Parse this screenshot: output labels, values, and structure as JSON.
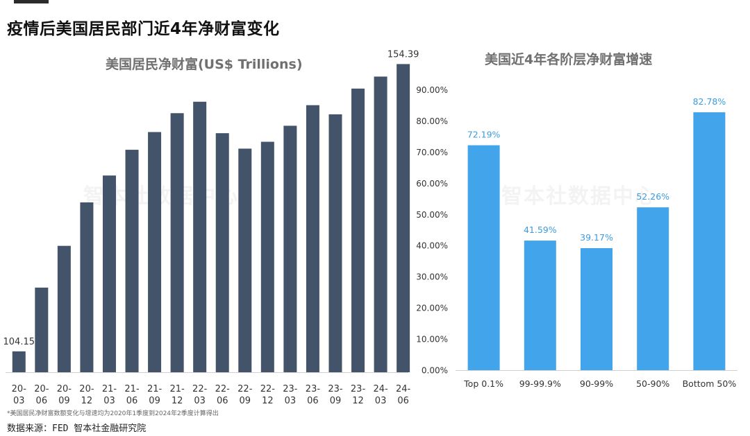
{
  "page": {
    "title": "疫情后美国居民部门近4年净财富变化",
    "footnote": "*美国居民净财富数额变化与增速均为2020年1季度到2024年2季度计算得出",
    "source": "数据来源：FED 智本社金融研究院",
    "watermark": "智本社数据中心"
  },
  "colors": {
    "left_bar": "#435369",
    "right_bar": "#42a5ec",
    "right_label": "#3c9be0",
    "axis_text": "#333333"
  },
  "chart_data": [
    {
      "type": "bar",
      "title": "美国居民净财富(US$ Trillions)",
      "categories": [
        "20-03",
        "20-06",
        "20-09",
        "20-12",
        "21-03",
        "21-06",
        "21-09",
        "21-12",
        "22-03",
        "22-06",
        "22-09",
        "22-12",
        "23-03",
        "23-06",
        "23-09",
        "23-12",
        "24-03",
        "24-06"
      ],
      "values": [
        104.15,
        115.3,
        122.6,
        130.2,
        134.9,
        139.4,
        142.5,
        145.8,
        147.8,
        142.3,
        139.6,
        140.8,
        143.6,
        147.2,
        145.6,
        150.1,
        152.2,
        154.39
      ],
      "data_labels": {
        "0": "104.15",
        "17": "154.39"
      },
      "ylim": [
        100.5,
        156.5
      ],
      "grid": false,
      "legend": "none"
    },
    {
      "type": "bar",
      "title": "美国近4年各阶层净财富增速",
      "categories": [
        "Top 0.1%",
        "99-99.9%",
        "90-99%",
        "50-90%",
        "Bottom 50%"
      ],
      "values": [
        72.19,
        41.59,
        39.17,
        52.26,
        82.78
      ],
      "value_labels": [
        "72.19%",
        "41.59%",
        "39.17%",
        "52.26%",
        "82.78%"
      ],
      "yticks": [
        "0.00%",
        "10.00%",
        "20.00%",
        "30.00%",
        "40.00%",
        "50.00%",
        "60.00%",
        "70.00%",
        "80.00%",
        "90.00%"
      ],
      "ylim": [
        0,
        90
      ],
      "grid": false,
      "legend": "none"
    }
  ]
}
